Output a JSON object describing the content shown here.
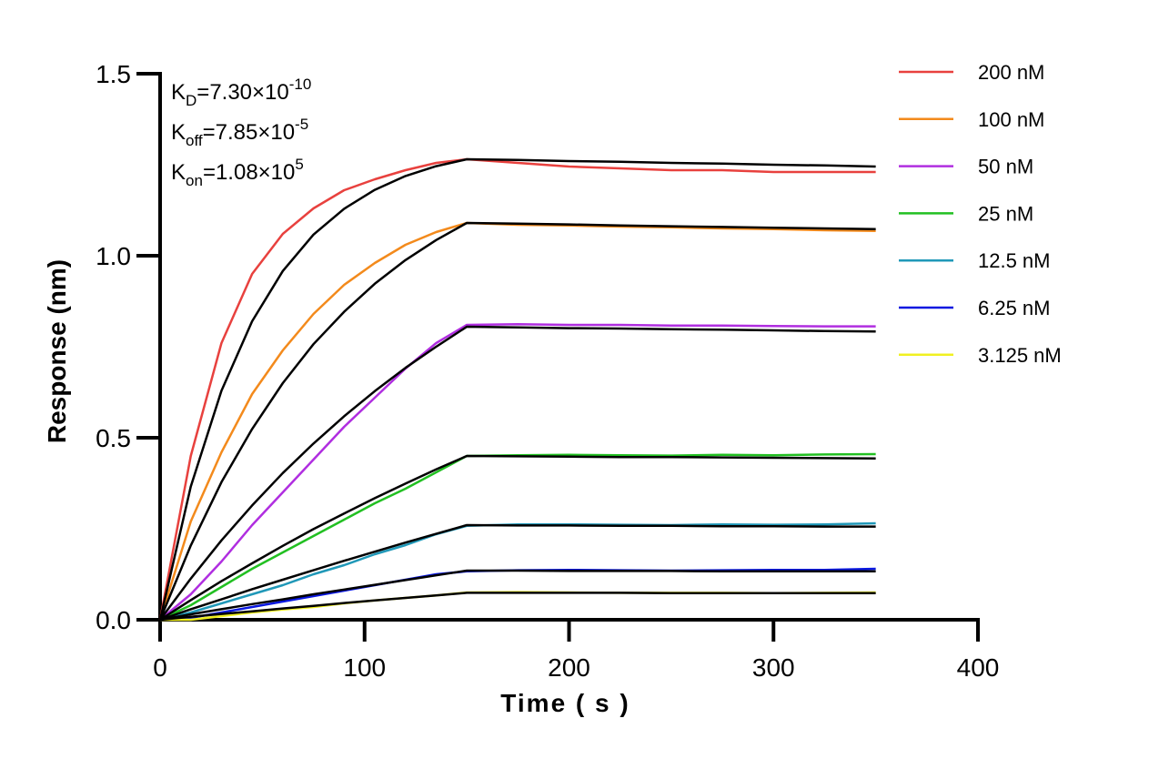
{
  "chart_data": {
    "type": "line",
    "x_label": "Time ( s )",
    "y_label": "Response (nm)",
    "annotations": [
      {
        "symbol": "K",
        "sub": "D",
        "text": "=7.30×10",
        "sup": "-10"
      },
      {
        "symbol": "K",
        "sub": "off",
        "text": "=7.85×10",
        "sup": "-5"
      },
      {
        "symbol": "K",
        "sub": "on",
        "text": "=1.08×10",
        "sup": "5"
      }
    ],
    "x": [
      0,
      15,
      30,
      45,
      60,
      75,
      90,
      105,
      120,
      135,
      150,
      175,
      200,
      225,
      250,
      275,
      300,
      325,
      350
    ],
    "xlim": [
      0,
      400
    ],
    "xticks": [
      0,
      100,
      200,
      300,
      400
    ],
    "ylim": [
      0,
      1.5
    ],
    "yticks": [
      {
        "value": 0,
        "label": "0.0"
      },
      0.5,
      {
        "value": 1,
        "label": "1.0"
      },
      1.5
    ],
    "legend": "top-right",
    "series": [
      {
        "name": "200 nM",
        "color": "#e8413e",
        "values": [
          0,
          0.45,
          0.76,
          0.95,
          1.06,
          1.13,
          1.18,
          1.21,
          1.235,
          1.255,
          1.265,
          1.255,
          1.245,
          1.24,
          1.235,
          1.235,
          1.23,
          1.23,
          1.23
        ]
      },
      {
        "name": "100 nM",
        "color": "#f38a1c",
        "values": [
          0,
          0.27,
          0.46,
          0.62,
          0.74,
          0.84,
          0.92,
          0.98,
          1.03,
          1.065,
          1.09,
          1.085,
          1.083,
          1.08,
          1.078,
          1.075,
          1.073,
          1.07,
          1.068
        ]
      },
      {
        "name": "50 nM",
        "color": "#b02ee0",
        "values": [
          0,
          0.07,
          0.16,
          0.26,
          0.35,
          0.44,
          0.53,
          0.61,
          0.69,
          0.76,
          0.81,
          0.812,
          0.81,
          0.81,
          0.808,
          0.808,
          0.807,
          0.806,
          0.806
        ]
      },
      {
        "name": "25 nM",
        "color": "#22c022",
        "values": [
          0,
          0.04,
          0.09,
          0.14,
          0.185,
          0.23,
          0.275,
          0.32,
          0.36,
          0.405,
          0.45,
          0.452,
          0.453,
          0.452,
          0.451,
          0.453,
          0.452,
          0.454,
          0.455
        ]
      },
      {
        "name": "12.5 nM",
        "color": "#2098b8",
        "values": [
          0,
          0.02,
          0.045,
          0.07,
          0.095,
          0.125,
          0.15,
          0.18,
          0.205,
          0.235,
          0.258,
          0.262,
          0.262,
          0.261,
          0.26,
          0.262,
          0.261,
          0.262,
          0.265
        ]
      },
      {
        "name": "6.25 nM",
        "color": "#0a18e0",
        "values": [
          0,
          0.005,
          0.02,
          0.035,
          0.05,
          0.065,
          0.08,
          0.095,
          0.11,
          0.125,
          0.133,
          0.136,
          0.137,
          0.136,
          0.135,
          0.136,
          0.137,
          0.137,
          0.14
        ]
      },
      {
        "name": "3.125 nM",
        "color": "#f0f020",
        "values": [
          0,
          0,
          0.01,
          0.02,
          0.028,
          0.035,
          0.045,
          0.053,
          0.06,
          0.067,
          0.075,
          0.076,
          0.075,
          0.074,
          0.074,
          0.074,
          0.073,
          0.074,
          0.075
        ]
      }
    ],
    "fits": [
      {
        "color": "#000000",
        "values": [
          0,
          0.366,
          0.629,
          0.82,
          0.958,
          1.058,
          1.129,
          1.181,
          1.219,
          1.246,
          1.265,
          1.263,
          1.26,
          1.258,
          1.255,
          1.253,
          1.25,
          1.248,
          1.245
        ]
      },
      {
        "color": "#000000",
        "values": [
          0,
          0.204,
          0.378,
          0.524,
          0.65,
          0.757,
          0.846,
          0.923,
          0.988,
          1.043,
          1.09,
          1.088,
          1.086,
          1.083,
          1.081,
          1.079,
          1.077,
          1.075,
          1.073
        ]
      },
      {
        "color": "#000000",
        "values": [
          0,
          0.113,
          0.218,
          0.314,
          0.403,
          0.484,
          0.559,
          0.628,
          0.692,
          0.75,
          0.805,
          0.803,
          0.801,
          0.8,
          0.798,
          0.797,
          0.795,
          0.793,
          0.792
        ]
      },
      {
        "color": "#000000",
        "values": [
          0,
          0.054,
          0.106,
          0.155,
          0.203,
          0.249,
          0.292,
          0.334,
          0.374,
          0.413,
          0.45,
          0.449,
          0.448,
          0.447,
          0.447,
          0.446,
          0.445,
          0.444,
          0.443
        ]
      },
      {
        "color": "#000000",
        "values": [
          0,
          0.029,
          0.056,
          0.084,
          0.11,
          0.136,
          0.162,
          0.187,
          0.212,
          0.236,
          0.26,
          0.259,
          0.259,
          0.258,
          0.258,
          0.257,
          0.257,
          0.256,
          0.256
        ]
      },
      {
        "color": "#000000",
        "values": [
          0,
          0.015,
          0.029,
          0.043,
          0.056,
          0.07,
          0.083,
          0.096,
          0.109,
          0.122,
          0.135,
          0.135,
          0.134,
          0.134,
          0.134,
          0.133,
          0.133,
          0.133,
          0.133
        ]
      },
      {
        "color": "#000000",
        "values": [
          0,
          0.008,
          0.016,
          0.023,
          0.031,
          0.038,
          0.046,
          0.053,
          0.06,
          0.067,
          0.074,
          0.074,
          0.074,
          0.074,
          0.073,
          0.073,
          0.073,
          0.073,
          0.073
        ]
      }
    ]
  }
}
